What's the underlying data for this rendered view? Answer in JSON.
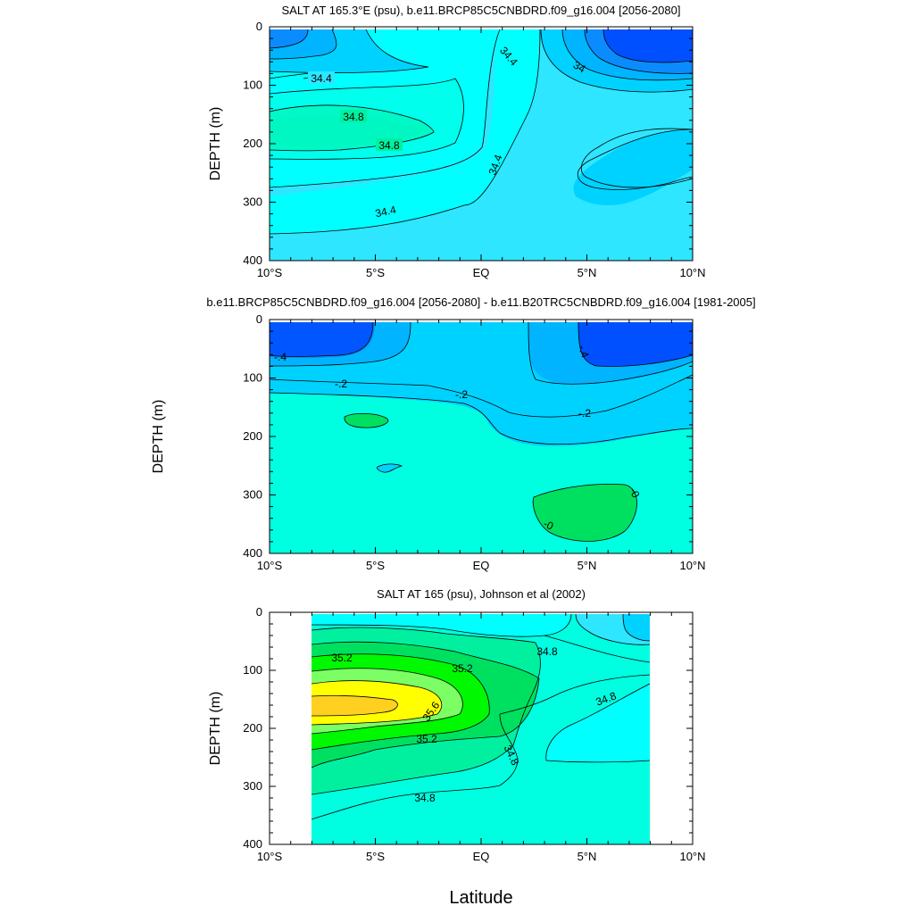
{
  "figure": {
    "xlabel": "Latitude"
  },
  "colors": {
    "blue_dark": "#0050ff",
    "blue_mid": "#0a8cff",
    "blue_light": "#00b4ff",
    "sky": "#00d2ff",
    "cyan_light": "#2ee6ff",
    "cyan": "#00ffff",
    "aqua": "#00ffe0",
    "seagreen": "#00f0a0",
    "mint": "#00e890",
    "green": "#00e060",
    "lime": "#00f800",
    "lightgreen": "#7cff64",
    "yellow": "#ffff00",
    "gold": "#ffd020"
  },
  "chart_data": [
    {
      "type": "contour",
      "title": "SALT AT 165.3°E (psu), b.e11.BRCP85C5CNBDRD.f09_g16.004 [2056-2080]",
      "ylabel": "DEPTH (m)",
      "x_ticks": [
        "10°S",
        "5°S",
        "EQ",
        "5°N",
        "10°N"
      ],
      "x_range": [
        -10,
        10
      ],
      "y_ticks": [
        "0",
        "100",
        "200",
        "300",
        "400"
      ],
      "y_range": [
        0,
        400
      ],
      "contour_labels": [
        "34.4",
        "34.8",
        "34.8",
        "34.4",
        "34.4",
        "34.4",
        "34"
      ]
    },
    {
      "type": "contour",
      "title": "b.e11.BRCP85C5CNBDRD.f09_g16.004 [2056-2080] - b.e11.B20TRC5CNBDRD.f09_g16.004 [1981-2005]",
      "ylabel": "DEPTH (m)",
      "x_ticks": [
        "10°S",
        "5°S",
        "EQ",
        "5°N",
        "10°N"
      ],
      "x_range": [
        -10,
        10
      ],
      "y_ticks": [
        "0",
        "100",
        "200",
        "300",
        "400"
      ],
      "y_range": [
        0,
        400
      ],
      "contour_labels": [
        "-.4",
        "-.2",
        "-.2",
        "-.2",
        "-.4",
        "-0",
        "-0"
      ]
    },
    {
      "type": "contour",
      "title": "SALT AT 165 (psu), Johnson et al (2002)",
      "ylabel": "DEPTH (m)",
      "x_ticks": [
        "10°S",
        "5°S",
        "EQ",
        "5°N",
        "10°N"
      ],
      "x_range": [
        -10,
        10
      ],
      "y_ticks": [
        "0",
        "100",
        "200",
        "300",
        "400"
      ],
      "y_range": [
        0,
        400
      ],
      "contour_labels": [
        "35.2",
        "35.2",
        "35.6",
        "35.2",
        "34.8",
        "34.8",
        "34.8",
        "34.8"
      ]
    }
  ]
}
